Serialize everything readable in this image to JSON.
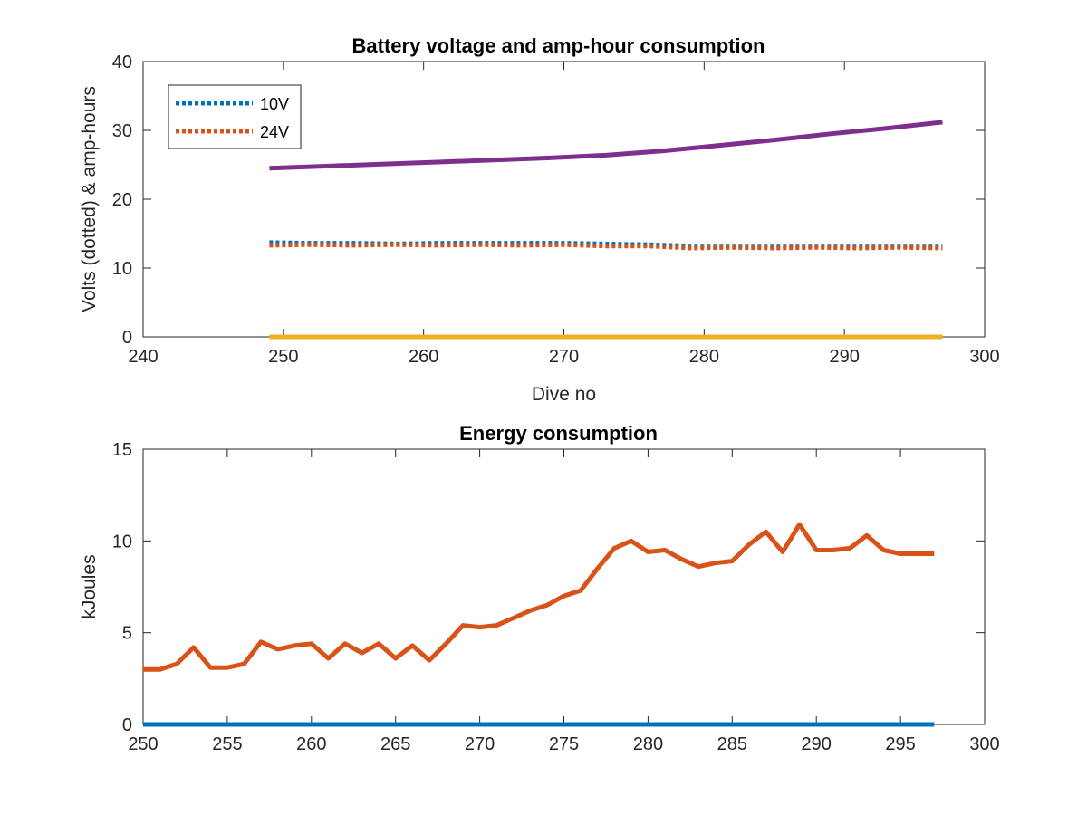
{
  "chart_data": [
    {
      "type": "line",
      "title": "Battery voltage and amp-hour consumption",
      "xlabel": "Dive no",
      "ylabel": "Volts (dotted) & amp-hours",
      "xlim": [
        240,
        300
      ],
      "ylim": [
        0,
        40
      ],
      "xticks": [
        240,
        250,
        260,
        270,
        280,
        290,
        300
      ],
      "yticks": [
        0,
        10,
        20,
        30,
        40
      ],
      "grid": false,
      "legend_location": "top-left",
      "series": [
        {
          "name": "10V",
          "style": "dotted",
          "color": "#0072BD",
          "x": [
            249,
            252,
            255,
            258,
            261,
            264,
            267,
            270,
            273,
            276,
            279,
            282,
            285,
            288,
            291,
            294,
            297
          ],
          "y": [
            13.7,
            13.6,
            13.6,
            13.5,
            13.6,
            13.6,
            13.6,
            13.6,
            13.5,
            13.4,
            13.2,
            13.2,
            13.2,
            13.2,
            13.2,
            13.2,
            13.2
          ]
        },
        {
          "name": "24V",
          "style": "dotted",
          "color": "#D95319",
          "x": [
            249,
            252,
            255,
            258,
            261,
            264,
            267,
            270,
            273,
            276,
            279,
            282,
            285,
            288,
            291,
            294,
            297
          ],
          "y": [
            13.3,
            13.4,
            13.3,
            13.4,
            13.3,
            13.4,
            13.3,
            13.4,
            13.2,
            13.2,
            12.9,
            13.0,
            12.9,
            13.0,
            12.9,
            13.0,
            12.9
          ]
        },
        {
          "style": "solid",
          "color": "#7E2F8E",
          "x": [
            249,
            253,
            257,
            261,
            265,
            269,
            273,
            277,
            281,
            285,
            289,
            293,
            297
          ],
          "y": [
            24.5,
            24.8,
            25.1,
            25.4,
            25.7,
            26.0,
            26.4,
            27.0,
            27.8,
            28.6,
            29.5,
            30.3,
            31.2
          ]
        },
        {
          "style": "solid",
          "color": "#EDB120",
          "x": [
            249,
            297
          ],
          "y": [
            0,
            0
          ]
        }
      ]
    },
    {
      "type": "line",
      "title": "Energy consumption",
      "xlabel": "",
      "ylabel": "kJoules",
      "xlim": [
        250,
        300
      ],
      "ylim": [
        0,
        15
      ],
      "xticks": [
        250,
        255,
        260,
        265,
        270,
        275,
        280,
        285,
        290,
        295,
        300
      ],
      "yticks": [
        0,
        5,
        10,
        15
      ],
      "grid": false,
      "series": [
        {
          "style": "solid",
          "color": "#D95319",
          "x": [
            250,
            251,
            252,
            253,
            254,
            255,
            256,
            257,
            258,
            259,
            260,
            261,
            262,
            263,
            264,
            265,
            266,
            267,
            268,
            269,
            270,
            271,
            272,
            273,
            274,
            275,
            276,
            277,
            278,
            279,
            280,
            281,
            282,
            283,
            284,
            285,
            286,
            287,
            288,
            289,
            290,
            291,
            292,
            293,
            294,
            295,
            296,
            297
          ],
          "y": [
            3.0,
            3.0,
            3.3,
            4.2,
            3.1,
            3.1,
            3.3,
            4.5,
            4.1,
            4.3,
            4.4,
            3.6,
            4.4,
            3.9,
            4.4,
            3.6,
            4.3,
            3.5,
            4.4,
            5.4,
            5.3,
            5.4,
            5.8,
            6.2,
            6.5,
            7.0,
            7.3,
            8.5,
            9.6,
            10.0,
            9.4,
            9.5,
            9.0,
            8.6,
            8.8,
            8.9,
            9.8,
            10.5,
            9.4,
            10.9,
            9.5,
            9.5,
            9.6,
            10.3,
            9.5,
            9.3,
            9.3,
            9.3
          ]
        },
        {
          "style": "solid",
          "color": "#0072BD",
          "x": [
            250,
            297
          ],
          "y": [
            0,
            0
          ]
        }
      ]
    }
  ]
}
